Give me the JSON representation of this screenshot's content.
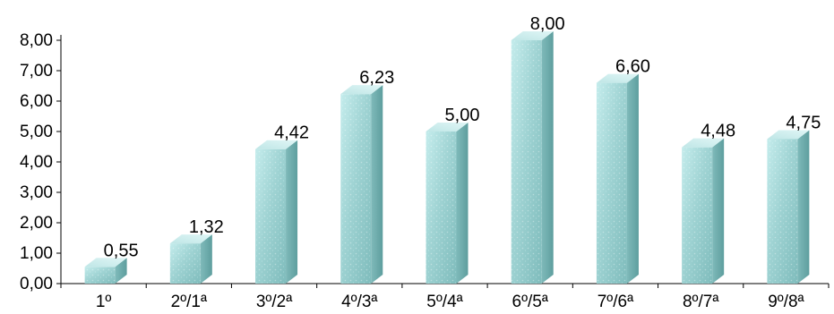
{
  "chart_data": {
    "type": "bar",
    "style": "3d-column",
    "categories": [
      "1º",
      "2º/1ª",
      "3º/2ª",
      "4º/3ª",
      "5º/4ª",
      "6º/5ª",
      "7º/6ª",
      "8º/7ª",
      "9º/8ª"
    ],
    "values": [
      0.55,
      1.32,
      4.42,
      6.23,
      5.0,
      8.0,
      6.6,
      4.48,
      4.75
    ],
    "data_labels": [
      "0,55",
      "1,32",
      "4,42",
      "6,23",
      "5,00",
      "8,00",
      "6,60",
      "4,48",
      "4,75"
    ],
    "y_ticks": [
      "0,00",
      "1,00",
      "2,00",
      "3,00",
      "4,00",
      "5,00",
      "6,00",
      "7,00",
      "8,00"
    ],
    "ylim": [
      0,
      8
    ],
    "title": "",
    "xlabel": "",
    "ylabel": "",
    "grid": false,
    "legend": "none",
    "colors": {
      "bar_front": "#a8d8d8",
      "bar_side": "#6fb0b0",
      "bar_top": "#cdeeee",
      "axis": "#000000"
    }
  }
}
